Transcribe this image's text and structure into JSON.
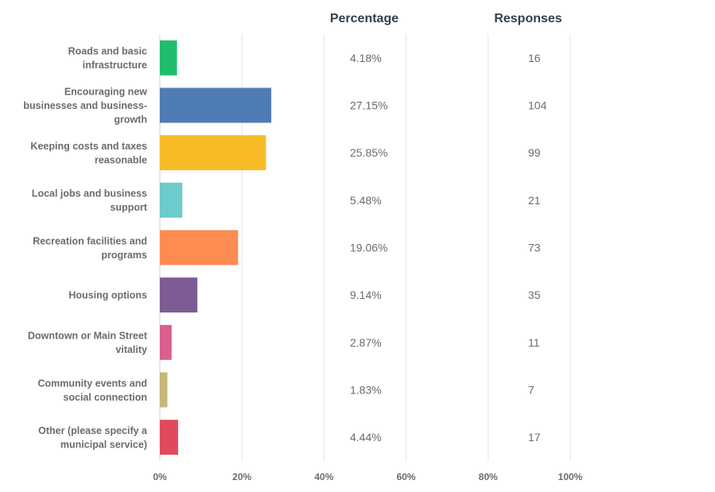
{
  "chart_data": {
    "type": "bar",
    "orientation": "horizontal",
    "columns": {
      "percentage_header": "Percentage",
      "responses_header": "Responses"
    },
    "categories": [
      [
        "Roads and basic",
        "infrastructure"
      ],
      [
        "Encouraging new",
        "businesses and business-",
        "growth"
      ],
      [
        "Keeping costs and taxes",
        "reasonable"
      ],
      [
        "Local jobs and business",
        "support"
      ],
      [
        "Recreation facilities and",
        "programs"
      ],
      [
        "Housing options"
      ],
      [
        "Downtown or Main Street",
        "vitality"
      ],
      [
        "Community events and",
        "social connection"
      ],
      [
        "Other (please specify a",
        "municipal service)"
      ]
    ],
    "values": [
      4.18,
      27.15,
      25.85,
      5.48,
      19.06,
      9.14,
      2.87,
      1.83,
      4.44
    ],
    "percent_labels": [
      "4.18%",
      "27.15%",
      "25.85%",
      "5.48%",
      "19.06%",
      "9.14%",
      "2.87%",
      "1.83%",
      "4.44%"
    ],
    "responses": [
      "16",
      "104",
      "99",
      "21",
      "73",
      "35",
      "11",
      "7",
      "17"
    ],
    "colors": [
      "#1fbd6e",
      "#507cb6",
      "#f6bb27",
      "#6ccbcb",
      "#fd8c52",
      "#7d5b94",
      "#da5f8f",
      "#c7b879",
      "#e04a5a"
    ],
    "xlim": [
      0,
      100
    ],
    "xticks": [
      0,
      20,
      40,
      60,
      80,
      100
    ],
    "xtick_labels": [
      "0%",
      "20%",
      "40%",
      "60%",
      "80%",
      "100%"
    ],
    "grid": true
  }
}
